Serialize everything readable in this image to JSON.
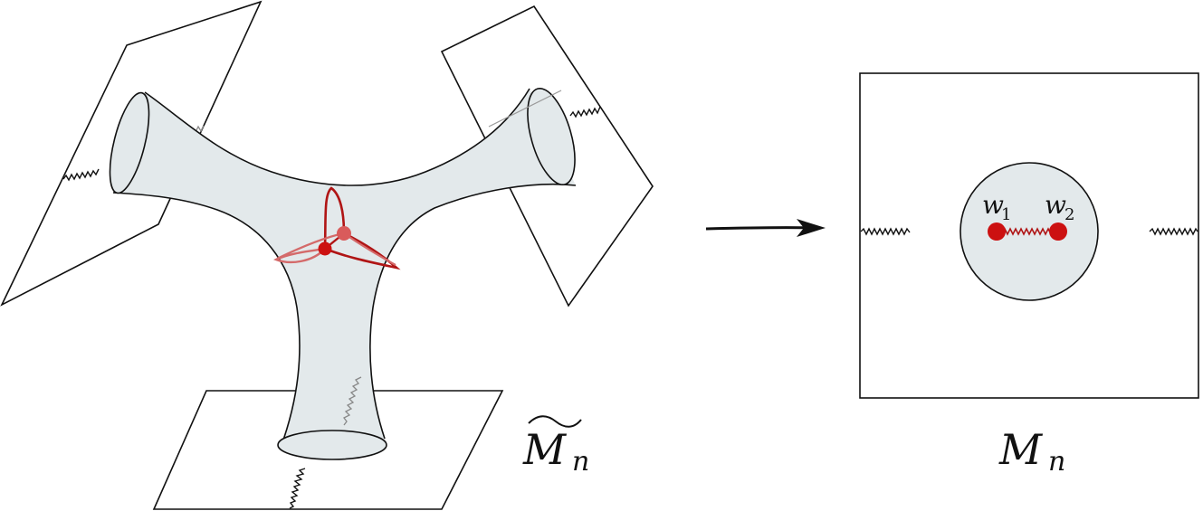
{
  "figure": {
    "left_label": {
      "main": "M",
      "sub": "n",
      "decoration": "tilde"
    },
    "right_label": {
      "main": "M",
      "sub": "n"
    },
    "point_w1": {
      "name": "w",
      "sub": "1"
    },
    "point_w2": {
      "name": "w",
      "sub": "2"
    },
    "colors": {
      "surface_fill": "#e3e9eb",
      "outline": "#111111",
      "red": "#b01515",
      "red_light": "#d46a6a",
      "red_point": "#cc1111",
      "inner_disk": "#e3e9eb"
    },
    "arrow": {
      "direction": "right"
    }
  }
}
